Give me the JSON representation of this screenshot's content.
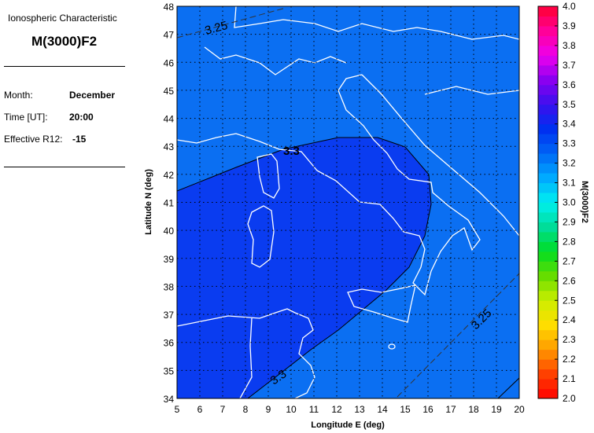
{
  "panel": {
    "subtitle": "Ionospheric Characteristic",
    "title": "M(3000)F2",
    "month_label": "Month:",
    "month_value": "December",
    "time_label": "Time [UT]:",
    "time_value": "20:00",
    "r12_label": "Effective R12:",
    "r12_value": "-15"
  },
  "chart_data": {
    "type": "heatmap",
    "subtype": "filled contour map",
    "xlabel": "Longitude E (deg)",
    "ylabel": "Latitude N (deg)",
    "xlim": [
      5,
      20
    ],
    "ylim": [
      34,
      48
    ],
    "xticks": [
      "5",
      "6",
      "7",
      "8",
      "9",
      "10",
      "11",
      "12",
      "13",
      "14",
      "15",
      "16",
      "17",
      "18",
      "19",
      "20"
    ],
    "yticks": [
      "34",
      "35",
      "36",
      "37",
      "38",
      "39",
      "40",
      "41",
      "42",
      "43",
      "44",
      "45",
      "46",
      "47",
      "48"
    ],
    "grid": true,
    "fill_regions": [
      {
        "range": "3.25-3.3",
        "color": "#0b6ff2"
      },
      {
        "range": "3.3-3.35",
        "color": "#0a3cf0"
      }
    ],
    "contours": [
      {
        "level": 3.25,
        "style": "dashed",
        "label": "3.25"
      },
      {
        "level": 3.3,
        "style": "solid",
        "label": "3.3"
      }
    ],
    "colorbar": {
      "label": "M(3000)F2",
      "range": [
        2.0,
        4.0
      ],
      "ticks": [
        "2.0",
        "2.1",
        "2.2",
        "2.3",
        "2.4",
        "2.5",
        "2.6",
        "2.7",
        "2.8",
        "2.9",
        "3.0",
        "3.1",
        "3.2",
        "3.3",
        "3.4",
        "3.5",
        "3.6",
        "3.7",
        "3.8",
        "3.9",
        "4.0"
      ],
      "colors": [
        "#ff0000",
        "#ff4000",
        "#ff9900",
        "#ffdd00",
        "#ccee00",
        "#66dd00",
        "#00dd22",
        "#00dd99",
        "#00f0f0",
        "#00aaff",
        "#0066f5",
        "#0030f0",
        "#3a10ee",
        "#8a00f0",
        "#ee00ee",
        "#ff0099",
        "#ff0030"
      ]
    },
    "basemap": "coastlines of Italy, Corsica, Sardinia, Sicily, Balkans, North Africa"
  }
}
